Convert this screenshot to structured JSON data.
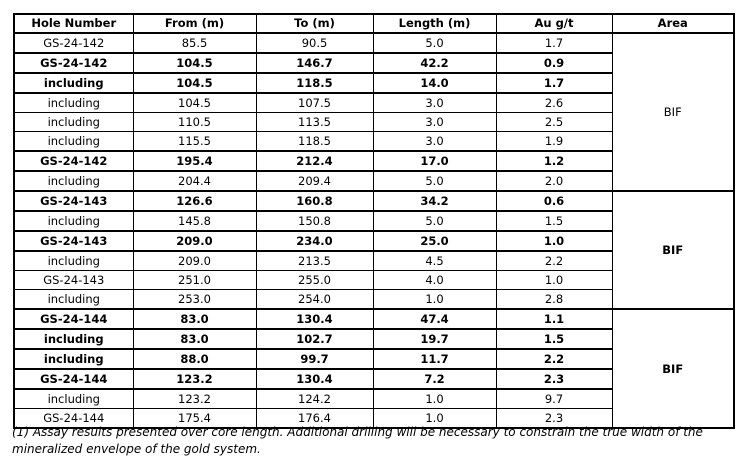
{
  "colors": {
    "background": "#ffffff",
    "border": "#000000",
    "text": "#000000"
  },
  "table": {
    "columns": [
      "Hole Number",
      "From (m)",
      "To (m)",
      "Length (m)",
      "Au g/t",
      "Area"
    ],
    "groups": [
      {
        "area": "BIF",
        "rows": [
          {
            "hole": "GS-24-142",
            "from": "85.5",
            "to": "90.5",
            "length": "5.0",
            "au": "1.7",
            "bold": false
          },
          {
            "hole": "GS-24-142",
            "from": "104.5",
            "to": "146.7",
            "length": "42.2",
            "au": "0.9",
            "bold": true
          },
          {
            "hole": "including",
            "from": "104.5",
            "to": "118.5",
            "length": "14.0",
            "au": "1.7",
            "bold": true
          },
          {
            "hole": "including",
            "from": "104.5",
            "to": "107.5",
            "length": "3.0",
            "au": "2.6",
            "bold": false
          },
          {
            "hole": "including",
            "from": "110.5",
            "to": "113.5",
            "length": "3.0",
            "au": "2.5",
            "bold": false
          },
          {
            "hole": "including",
            "from": "115.5",
            "to": "118.5",
            "length": "3.0",
            "au": "1.9",
            "bold": false
          },
          {
            "hole": "GS-24-142",
            "from": "195.4",
            "to": "212.4",
            "length": "17.0",
            "au": "1.2",
            "bold": true
          },
          {
            "hole": "including",
            "from": "204.4",
            "to": "209.4",
            "length": "5.0",
            "au": "2.0",
            "bold": false
          }
        ]
      },
      {
        "area": "BIF",
        "rows": [
          {
            "hole": "GS-24-143",
            "from": "126.6",
            "to": "160.8",
            "length": "34.2",
            "au": "0.6",
            "bold": true
          },
          {
            "hole": "including",
            "from": "145.8",
            "to": "150.8",
            "length": "5.0",
            "au": "1.5",
            "bold": false
          },
          {
            "hole": "GS-24-143",
            "from": "209.0",
            "to": "234.0",
            "length": "25.0",
            "au": "1.0",
            "bold": true
          },
          {
            "hole": "including",
            "from": "209.0",
            "to": "213.5",
            "length": "4.5",
            "au": "2.2",
            "bold": false
          },
          {
            "hole": "GS-24-143",
            "from": "251.0",
            "to": "255.0",
            "length": "4.0",
            "au": "1.0",
            "bold": false
          },
          {
            "hole": "including",
            "from": "253.0",
            "to": "254.0",
            "length": "1.0",
            "au": "2.8",
            "bold": false
          }
        ]
      },
      {
        "area": "BIF",
        "rows": [
          {
            "hole": "GS-24-144",
            "from": "83.0",
            "to": "130.4",
            "length": "47.4",
            "au": "1.1",
            "bold": true
          },
          {
            "hole": "including",
            "from": "83.0",
            "to": "102.7",
            "length": "19.7",
            "au": "1.5",
            "bold": true
          },
          {
            "hole": "including",
            "from": "88.0",
            "to": "99.7",
            "length": "11.7",
            "au": "2.2",
            "bold": true
          },
          {
            "hole": "GS-24-144",
            "from": "123.2",
            "to": "130.4",
            "length": "7.2",
            "au": "2.3",
            "bold": true
          },
          {
            "hole": "including",
            "from": "123.2",
            "to": "124.2",
            "length": "1.0",
            "au": "9.7",
            "bold": false
          },
          {
            "hole": "GS-24-144",
            "from": "175.4",
            "to": "176.4",
            "length": "1.0",
            "au": "2.3",
            "bold": false
          }
        ]
      }
    ]
  },
  "footnote": "(1) Assay results presented over core length. Additional drilling will be necessary to constrain the true width of the mineralized envelope of the gold system."
}
